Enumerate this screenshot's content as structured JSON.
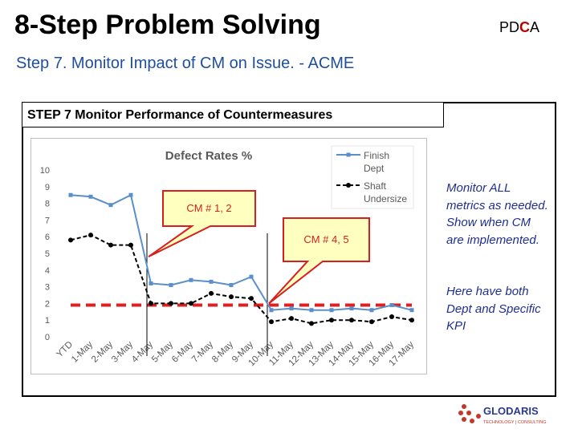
{
  "slide": {
    "title": "8-Step Problem Solving",
    "pdca_prefix": "PD",
    "pdca_highlight": "C",
    "pdca_suffix": "A",
    "subtitle": "Step 7. Monitor Impact of CM on Issue. - ACME",
    "step_label": "STEP 7  Monitor Performance of Countermeasures",
    "note1": "Monitor ALL metrics as needed.  Show when CM are implemented.",
    "note2": "Here have both Dept and Specific KPI",
    "logo_name": "GLODARIS",
    "logo_tagline": "TECHNOLOGY | CONSULTING"
  },
  "colors": {
    "subtitle": "#1f4e9e",
    "finish_series": "#5b8fc9",
    "shaft_series": "#000000",
    "target_line": "#e02020",
    "callout_fill": "#ffffc0",
    "callout_border": "#d62020",
    "note_text": "#1f2f8f",
    "logo_red": "#c0392b",
    "logo_blue": "#2a3b8f"
  },
  "chart_data": {
    "type": "line",
    "title": "Defect Rates %",
    "categories": [
      "YTD",
      "1-May",
      "2-May",
      "3-May",
      "4-May",
      "5-May",
      "6-May",
      "7-May",
      "8-May",
      "9-May",
      "10-May",
      "11-May",
      "12-May",
      "13-May",
      "14-May",
      "15-May",
      "16-May",
      "17-May"
    ],
    "series": [
      {
        "name": "Finish Dept",
        "color": "#5b8fc9",
        "values": [
          8.5,
          8.4,
          7.9,
          8.5,
          3.2,
          3.1,
          3.4,
          3.3,
          3.1,
          3.6,
          1.6,
          1.7,
          1.6,
          1.6,
          1.7,
          1.6,
          1.9,
          1.6
        ]
      },
      {
        "name": "Shaft Undersize",
        "color": "#000000",
        "dashed": true,
        "values": [
          5.8,
          6.1,
          5.5,
          5.5,
          2.0,
          2.0,
          2.0,
          2.6,
          2.4,
          2.3,
          0.9,
          1.1,
          0.8,
          1.0,
          1.0,
          0.9,
          1.2,
          1.0
        ]
      }
    ],
    "target": 1.9,
    "ylim": [
      0,
      10
    ],
    "yticks": [
      0,
      1,
      2,
      3,
      4,
      5,
      6,
      7,
      8,
      9,
      10
    ],
    "legend_position": "top-right",
    "grid": false,
    "cm_markers": [
      {
        "label": "CM # 1, 2",
        "index": 4
      },
      {
        "label": "CM # 4, 5",
        "index": 10
      }
    ]
  }
}
